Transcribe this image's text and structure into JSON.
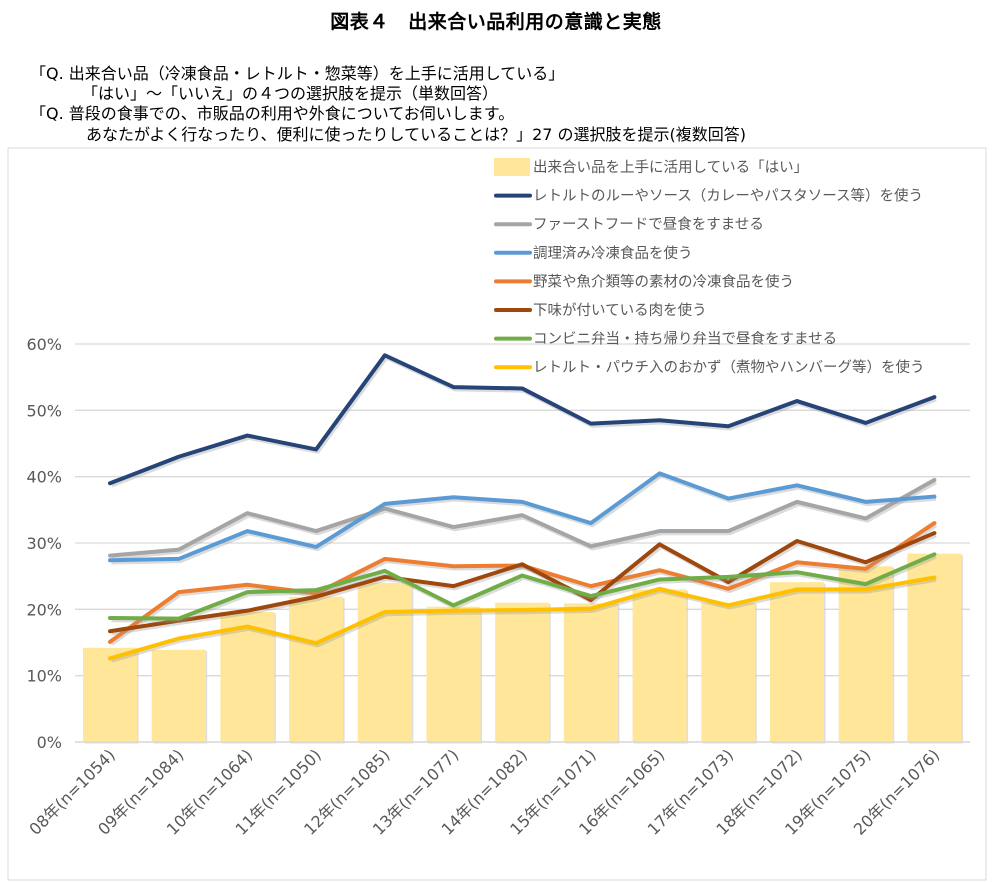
{
  "title": "図表４　出来合い品利用の意識と実態",
  "notes": [
    "「Q. 出来合い品（冷凍食品・レトルト・惣菜等）を上手に活用している」",
    "「はい」～「いいえ」の４つの選択肢を提示（単数回答）",
    "「Q. 普段の食事での、市販品の利用や外食についてお伺いします。",
    "あなたがよく行なったり、便利に使ったりしていることは？」27 の選択肢を提示(複数回答)"
  ],
  "chart_data": {
    "type": "bar+line",
    "categories": [
      "08年(n=1054)",
      "09年(n=1084)",
      "10年(n=1064)",
      "11年(n=1050)",
      "12年(n=1085)",
      "13年(n=1077)",
      "14年(n=1082)",
      "15年(n=1071)",
      "16年(n=1065)",
      "17年(n=1073)",
      "18年(n=1072)",
      "19年(n=1075)",
      "20年(n=1076)"
    ],
    "ylim": [
      0,
      60
    ],
    "yticks": [
      "0%",
      "10%",
      "20%",
      "30%",
      "40%",
      "50%",
      "60%"
    ],
    "grid": true,
    "legend_position": "top-right",
    "series": [
      {
        "name": "出来合い品を上手に活用している「はい」",
        "kind": "bar",
        "color": "#FFE699",
        "values": [
          14.2,
          13.9,
          19.6,
          21.9,
          24.0,
          20.4,
          21.0,
          20.9,
          23.0,
          21.0,
          24.1,
          26.5,
          28.4
        ]
      },
      {
        "name": "レトルトのルーやソース（カレーやパスタソース等）を使う",
        "kind": "line",
        "color": "#264478",
        "values": [
          39.0,
          43.0,
          46.2,
          44.1,
          58.3,
          53.5,
          53.3,
          48.0,
          48.5,
          47.6,
          51.4,
          48.1,
          52.0
        ]
      },
      {
        "name": "ファーストフードで昼食をすませる",
        "kind": "line",
        "color": "#A5A5A5",
        "values": [
          28.1,
          29.0,
          34.5,
          31.8,
          35.2,
          32.4,
          34.2,
          29.5,
          31.8,
          31.8,
          36.2,
          33.7,
          39.5
        ]
      },
      {
        "name": "調理済み冷凍食品を使う",
        "kind": "line",
        "color": "#5B9BD5",
        "values": [
          27.4,
          27.6,
          31.8,
          29.4,
          35.9,
          36.9,
          36.2,
          33.0,
          40.5,
          36.7,
          38.7,
          36.2,
          37.0
        ]
      },
      {
        "name": "野菜や魚介類等の素材の冷凍食品を使う",
        "kind": "line",
        "color": "#ED7D31",
        "values": [
          15.1,
          22.6,
          23.7,
          22.4,
          27.6,
          26.5,
          26.6,
          23.5,
          25.9,
          23.1,
          27.1,
          26.1,
          33.0
        ]
      },
      {
        "name": "下味が付いている肉を使う",
        "kind": "line",
        "color": "#9E480E",
        "values": [
          16.7,
          18.3,
          19.8,
          21.9,
          24.9,
          23.5,
          26.8,
          21.4,
          29.8,
          24.1,
          30.3,
          27.1,
          31.5
        ]
      },
      {
        "name": "コンビニ弁当・持ち帰り弁当で昼食をすませる",
        "kind": "line",
        "color": "#70AD47",
        "values": [
          18.7,
          18.6,
          22.6,
          22.9,
          25.8,
          20.6,
          25.1,
          22.0,
          24.5,
          24.9,
          25.6,
          23.8,
          28.3
        ]
      },
      {
        "name": "レトルト・パウチ入のおかず（煮物やハンバーグ等）を使う",
        "kind": "line",
        "color": "#FFC000",
        "values": [
          12.6,
          15.6,
          17.4,
          14.9,
          19.6,
          19.8,
          19.9,
          20.1,
          23.1,
          20.6,
          23.0,
          23.0,
          24.8
        ]
      }
    ]
  }
}
